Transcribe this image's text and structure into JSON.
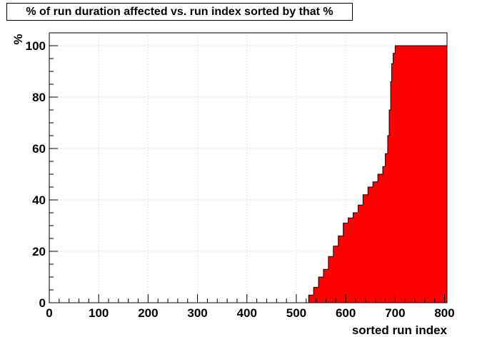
{
  "chart_data": {
    "type": "area",
    "title": "% of run duration affected vs. run index sorted by that %",
    "xlabel": "sorted run index",
    "ylabel": "%",
    "xlim": [
      0,
      805
    ],
    "ylim": [
      0,
      105
    ],
    "x_ticks": [
      0,
      100,
      200,
      300,
      400,
      500,
      600,
      700,
      800
    ],
    "y_ticks": [
      0,
      20,
      40,
      60,
      80,
      100
    ],
    "grid": true,
    "fill_color": "#ff0000",
    "series": [
      {
        "x": [
          0,
          518,
          525,
          535,
          545,
          555,
          565,
          575,
          585,
          595,
          605,
          615,
          625,
          635,
          645,
          655,
          665,
          675,
          680,
          685,
          688,
          691,
          693,
          696,
          700,
          805
        ],
        "y": [
          0,
          0,
          3,
          6,
          10,
          13,
          18,
          22,
          26,
          31,
          33,
          35,
          38,
          42,
          45,
          47,
          50,
          53,
          58,
          65,
          75,
          86,
          93,
          97,
          100,
          100
        ]
      }
    ]
  }
}
